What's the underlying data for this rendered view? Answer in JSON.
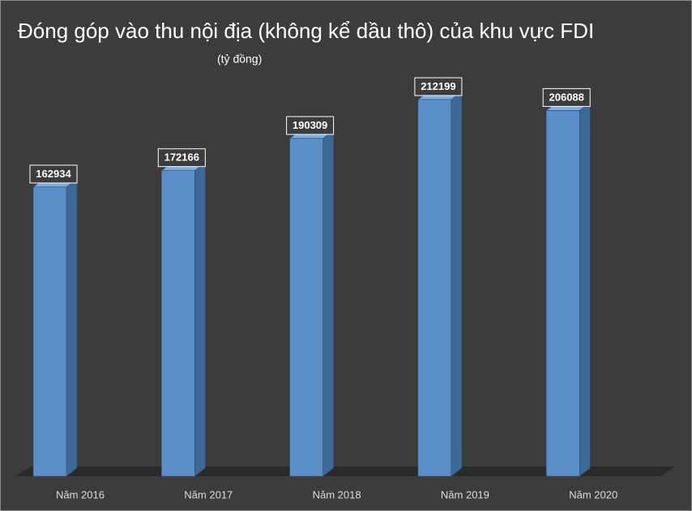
{
  "chart_data": {
    "type": "bar",
    "title": "Đóng góp vào thu nội địa (không kể dầu thô) của khu vực FDI",
    "subtitle": "(tỷ đồng)",
    "categories": [
      "Năm 2016",
      "Năm 2017",
      "Năm 2018",
      "Năm 2019",
      "Năm 2020"
    ],
    "values": [
      162934,
      172166,
      190309,
      212199,
      206088
    ],
    "color": "#5a8fca"
  }
}
